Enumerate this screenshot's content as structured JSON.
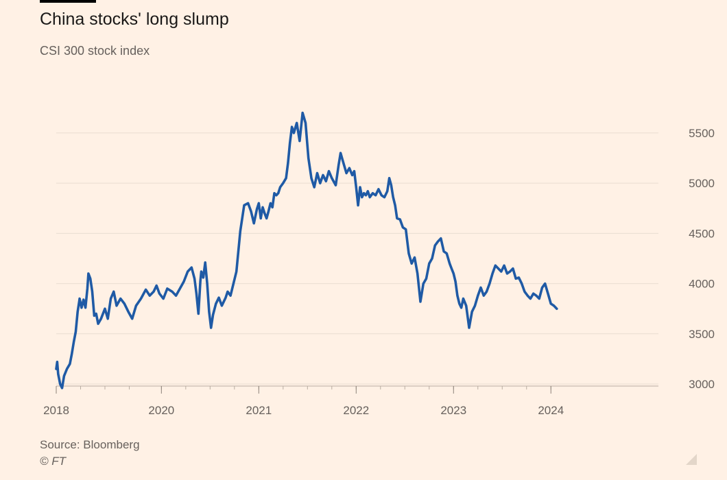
{
  "title": "China stocks' long slump",
  "subtitle": "CSI 300 stock index",
  "source": "Source: Bloomberg",
  "copyright": "© FT",
  "colors": {
    "background": "#fff1e5",
    "line": "#1f5aa5",
    "grid": "#e9ddd1",
    "axis": "#66605c"
  },
  "chart_data": {
    "type": "line",
    "title": "China stocks' long slump",
    "subtitle": "CSI 300 stock index",
    "xlabel": "",
    "ylabel": "",
    "ylim": [
      3000,
      5800
    ],
    "xlim": [
      2018.0,
      2024.17
    ],
    "y_ticks": [
      3000,
      3500,
      4000,
      4500,
      5000,
      5500
    ],
    "x_ticks": [
      {
        "label": "2018",
        "value": 2018.0
      },
      {
        "label": "2020",
        "value": 2019.08
      },
      {
        "label": "2021",
        "value": 2020.08
      },
      {
        "label": "2022",
        "value": 2021.08
      },
      {
        "label": "2023",
        "value": 2022.08
      },
      {
        "label": "2024",
        "value": 2023.08
      }
    ],
    "minor_x_ticks": [
      2018.0,
      2018.25,
      2018.5,
      2018.75,
      2019.08,
      2019.33,
      2019.58,
      2019.83,
      2020.08,
      2020.33,
      2020.58,
      2020.83,
      2021.08,
      2021.33,
      2021.58,
      2021.83,
      2022.08,
      2022.33,
      2022.58,
      2022.83,
      2023.08
    ],
    "y_axis_side": "right",
    "grid": true,
    "series": [
      {
        "name": "CSI 300",
        "x": [
          2018.0,
          2018.01,
          2018.02,
          2018.04,
          2018.06,
          2018.08,
          2018.11,
          2018.14,
          2018.16,
          2018.18,
          2018.2,
          2018.22,
          2018.24,
          2018.26,
          2018.28,
          2018.3,
          2018.32,
          2018.33,
          2018.35,
          2018.37,
          2018.39,
          2018.41,
          2018.43,
          2018.46,
          2018.5,
          2018.53,
          2018.56,
          2018.59,
          2018.62,
          2018.66,
          2018.7,
          2018.74,
          2018.78,
          2018.82,
          2018.87,
          2018.92,
          2018.96,
          2019.0,
          2019.03,
          2019.06,
          2019.1,
          2019.14,
          2019.19,
          2019.23,
          2019.27,
          2019.31,
          2019.35,
          2019.39,
          2019.42,
          2019.44,
          2019.46,
          2019.48,
          2019.49,
          2019.51,
          2019.53,
          2019.55,
          2019.57,
          2019.59,
          2019.61,
          2019.64,
          2019.67,
          2019.7,
          2019.74,
          2019.76,
          2019.79,
          2019.82,
          2019.85,
          2019.89,
          2019.93,
          2019.97,
          2020.0,
          2020.03,
          2020.06,
          2020.08,
          2020.1,
          2020.12,
          2020.14,
          2020.16,
          2020.18,
          2020.2,
          2020.22,
          2020.24,
          2020.26,
          2020.28,
          2020.3,
          2020.33,
          2020.36,
          2020.38,
          2020.4,
          2020.42,
          2020.44,
          2020.47,
          2020.5,
          2020.53,
          2020.56,
          2020.59,
          2020.62,
          2020.65,
          2020.68,
          2020.71,
          2020.74,
          2020.77,
          2020.8,
          2020.83,
          2020.87,
          2020.9,
          2020.92,
          2020.95,
          2020.98,
          2021.01,
          2021.04,
          2021.06,
          2021.08,
          2021.1,
          2021.12,
          2021.14,
          2021.16,
          2021.18,
          2021.2,
          2021.22,
          2021.25,
          2021.28,
          2021.31,
          2021.34,
          2021.37,
          2021.4,
          2021.42,
          2021.44,
          2021.46,
          2021.48,
          2021.5,
          2021.53,
          2021.56,
          2021.59,
          2021.62,
          2021.65,
          2021.68,
          2021.71,
          2021.74,
          2021.77,
          2021.8,
          2021.83,
          2021.86,
          2021.89,
          2021.92,
          2021.95,
          2021.98,
          2022.01,
          2022.04,
          2022.06,
          2022.08,
          2022.1,
          2022.12,
          2022.14,
          2022.16,
          2022.18,
          2022.21,
          2022.24,
          2022.27,
          2022.3,
          2022.33,
          2022.36,
          2022.39,
          2022.42,
          2022.45,
          2022.48,
          2022.51,
          2022.54,
          2022.57,
          2022.6,
          2022.63,
          2022.66,
          2022.69,
          2022.72,
          2022.75,
          2022.78,
          2022.81,
          2022.84,
          2022.87,
          2022.9,
          2022.93,
          2022.96,
          2022.99,
          2023.02,
          2023.05,
          2023.08,
          2023.11,
          2023.14
        ],
        "y": [
          3150,
          3220,
          3100,
          3000,
          2960,
          3080,
          3150,
          3200,
          3300,
          3420,
          3520,
          3720,
          3850,
          3760,
          3840,
          3760,
          3950,
          4100,
          4050,
          3920,
          3680,
          3700,
          3600,
          3650,
          3750,
          3650,
          3850,
          3920,
          3780,
          3850,
          3800,
          3720,
          3650,
          3780,
          3850,
          3940,
          3880,
          3920,
          3980,
          3900,
          3850,
          3950,
          3920,
          3880,
          3950,
          4020,
          4120,
          4160,
          4050,
          3900,
          3700,
          4020,
          4120,
          4060,
          4210,
          4000,
          3720,
          3560,
          3690,
          3800,
          3860,
          3780,
          3860,
          3920,
          3880,
          4000,
          4120,
          4520,
          4780,
          4800,
          4720,
          4600,
          4740,
          4800,
          4650,
          4760,
          4700,
          4650,
          4720,
          4800,
          4760,
          4900,
          4880,
          4900,
          4960,
          5000,
          5050,
          5200,
          5400,
          5560,
          5500,
          5600,
          5420,
          5700,
          5600,
          5250,
          5050,
          4960,
          5100,
          5000,
          5080,
          5020,
          5120,
          5050,
          4980,
          5180,
          5300,
          5200,
          5100,
          5150,
          5080,
          5120,
          4960,
          4780,
          4960,
          4860,
          4900,
          4880,
          4920,
          4860,
          4900,
          4880,
          4940,
          4880,
          4860,
          4920,
          5050,
          4980,
          4860,
          4780,
          4650,
          4640,
          4560,
          4540,
          4300,
          4200,
          4260,
          4100,
          3820,
          4000,
          4050,
          4200,
          4250,
          4380,
          4420,
          4450,
          4320,
          4300,
          4200,
          4150,
          4100,
          4020,
          3880,
          3800,
          3760,
          3850,
          3780,
          3560,
          3720,
          3780,
          3880,
          3960,
          3880,
          3920,
          4000,
          4100,
          4180,
          4150,
          4120,
          4180,
          4100,
          4120,
          4150,
          4050,
          4060,
          4000,
          3920,
          3880,
          3850,
          3900,
          3880,
          3850,
          3960,
          4000,
          3900,
          3800,
          3780,
          3750
        ]
      }
    ]
  }
}
